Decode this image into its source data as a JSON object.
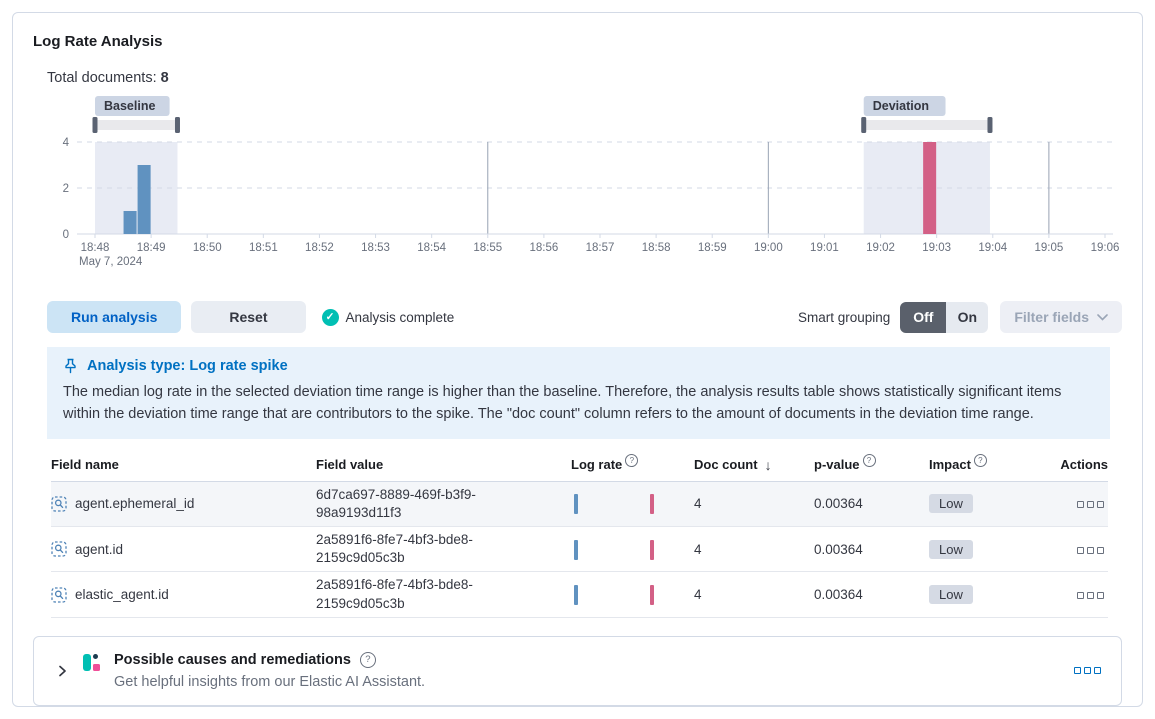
{
  "panel": {
    "title": "Log Rate Analysis",
    "total_documents_label": "Total documents:",
    "total_documents_value": "8"
  },
  "chart_data": {
    "type": "bar",
    "title": "Document count histogram",
    "x_ticks": [
      "18:48",
      "18:49",
      "18:50",
      "18:51",
      "18:52",
      "18:53",
      "18:54",
      "18:55",
      "18:56",
      "18:57",
      "18:58",
      "18:59",
      "19:00",
      "19:01",
      "19:02",
      "19:03",
      "19:04",
      "19:05",
      "19:06"
    ],
    "x_axis_sub_label": "May 7, 2024",
    "y_ticks": [
      0,
      2,
      4
    ],
    "ylim": [
      0,
      4
    ],
    "major_gridlines": [
      "18:55",
      "19:00",
      "19:05"
    ],
    "bucket_minutes": 0.25,
    "bars": [
      {
        "x_min": 0.5,
        "value": 1,
        "series": "baseline"
      },
      {
        "x_min": 0.75,
        "value": 3,
        "series": "baseline"
      },
      {
        "x_min": 14.75,
        "value": 4,
        "series": "deviation"
      }
    ],
    "brushes": [
      {
        "label": "Baseline",
        "from_min": 0,
        "to_min": 1.47
      },
      {
        "label": "Deviation",
        "from_min": 13.7,
        "to_min": 15.95
      }
    ],
    "colors": {
      "baseline_bar": "#6092c0",
      "deviation_bar": "#d36086",
      "brush_region": "#e8ebf4",
      "badge_bg": "#ccd5e4",
      "handle": "#5a6272",
      "track": "#e9e9ec",
      "gridline_major": "#98a2b3",
      "gridline_dashed": "#d3dae6",
      "axis_text": "#69707d"
    }
  },
  "controls": {
    "run_label": "Run analysis",
    "reset_label": "Reset",
    "status_label": "Analysis complete",
    "smart_grouping_label": "Smart grouping",
    "off_label": "Off",
    "on_label": "On",
    "filter_fields_label": "Filter fields"
  },
  "callout": {
    "title": "Analysis type: Log rate spike",
    "body": "The median log rate in the selected deviation time range is higher than the baseline. Therefore, the analysis results table shows statistically significant items within the deviation time range that are contributors to the spike. The \"doc count\" column refers to the amount of documents in the deviation time range."
  },
  "table": {
    "headers": [
      {
        "label": "Field name"
      },
      {
        "label": "Field value"
      },
      {
        "label": "Log rate",
        "info": true
      },
      {
        "label": "Doc count",
        "sort": "desc"
      },
      {
        "label": "p-value",
        "info": true
      },
      {
        "label": "Impact",
        "info": true
      },
      {
        "label": "Actions"
      }
    ],
    "rows": [
      {
        "field_name": "agent.ephemeral_id",
        "field_value": "6d7ca697-8889-469f-b3f9-98a9193d11f3",
        "doc_count": "4",
        "p_value": "0.00364",
        "impact": "Low"
      },
      {
        "field_name": "agent.id",
        "field_value": "2a5891f6-8fe7-4bf3-bde8-2159c9d05c3b",
        "doc_count": "4",
        "p_value": "0.00364",
        "impact": "Low"
      },
      {
        "field_name": "elastic_agent.id",
        "field_value": "2a5891f6-8fe7-4bf3-bde8-2159c9d05c3b",
        "doc_count": "4",
        "p_value": "0.00364",
        "impact": "Low"
      }
    ]
  },
  "insights": {
    "title": "Possible causes and remediations",
    "subtitle": "Get helpful insights from our Elastic AI Assistant."
  }
}
